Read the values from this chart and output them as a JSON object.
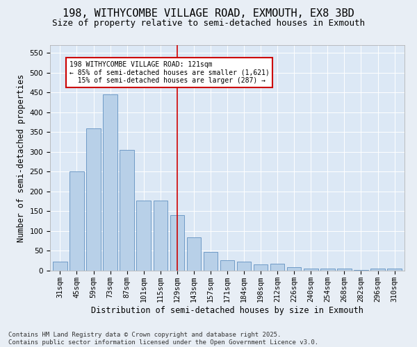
{
  "title": "198, WITHYCOMBE VILLAGE ROAD, EXMOUTH, EX8 3BD",
  "subtitle": "Size of property relative to semi-detached houses in Exmouth",
  "xlabel": "Distribution of semi-detached houses by size in Exmouth",
  "ylabel": "Number of semi-detached properties",
  "categories": [
    "31sqm",
    "45sqm",
    "59sqm",
    "73sqm",
    "87sqm",
    "101sqm",
    "115sqm",
    "129sqm",
    "143sqm",
    "157sqm",
    "171sqm",
    "184sqm",
    "198sqm",
    "212sqm",
    "226sqm",
    "240sqm",
    "254sqm",
    "268sqm",
    "282sqm",
    "296sqm",
    "310sqm"
  ],
  "values": [
    23,
    250,
    360,
    445,
    305,
    178,
    178,
    140,
    85,
    47,
    27,
    22,
    15,
    18,
    8,
    6,
    6,
    6,
    2,
    6,
    6
  ],
  "bar_color": "#b8d0e8",
  "bar_edge_color": "#6090c0",
  "vline_color": "#cc0000",
  "annotation_text": "198 WITHYCOMBE VILLAGE ROAD: 121sqm\n← 85% of semi-detached houses are smaller (1,621)\n  15% of semi-detached houses are larger (287) →",
  "annotation_box_color": "#cc0000",
  "ylim": [
    0,
    570
  ],
  "yticks": [
    0,
    50,
    100,
    150,
    200,
    250,
    300,
    350,
    400,
    450,
    500,
    550
  ],
  "footer_text": "Contains HM Land Registry data © Crown copyright and database right 2025.\nContains public sector information licensed under the Open Government Licence v3.0.",
  "bg_color": "#e8eef5",
  "plot_bg_color": "#dce8f5",
  "grid_color": "#ffffff",
  "title_fontsize": 11,
  "subtitle_fontsize": 9,
  "axis_label_fontsize": 8.5,
  "tick_fontsize": 7.5,
  "footer_fontsize": 6.5
}
